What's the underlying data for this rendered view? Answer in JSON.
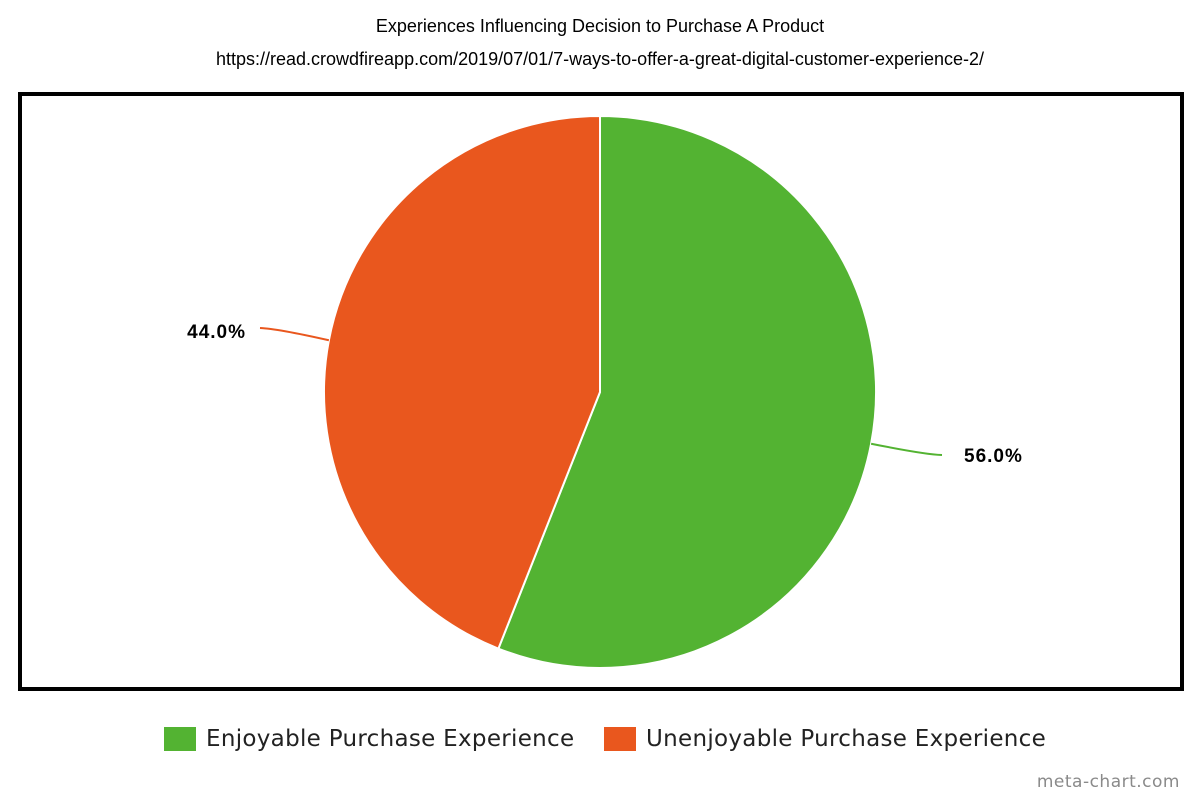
{
  "chart_data": {
    "type": "pie",
    "title": "Experiences Influencing Decision to Purchase A Product",
    "subtitle": "https://read.crowdfireapp.com/2019/07/01/7-ways-to-offer-a-great-digital-customer-experience-2/",
    "slices": [
      {
        "name": "Enjoyable Purchase Experience",
        "value": 56.0,
        "label": "56.0%",
        "color": "#53b332"
      },
      {
        "name": "Unenjoyable Purchase Experience",
        "value": 44.0,
        "label": "44.0%",
        "color": "#e9571e"
      }
    ],
    "legend_position": "bottom"
  },
  "watermark": "meta-chart.com"
}
